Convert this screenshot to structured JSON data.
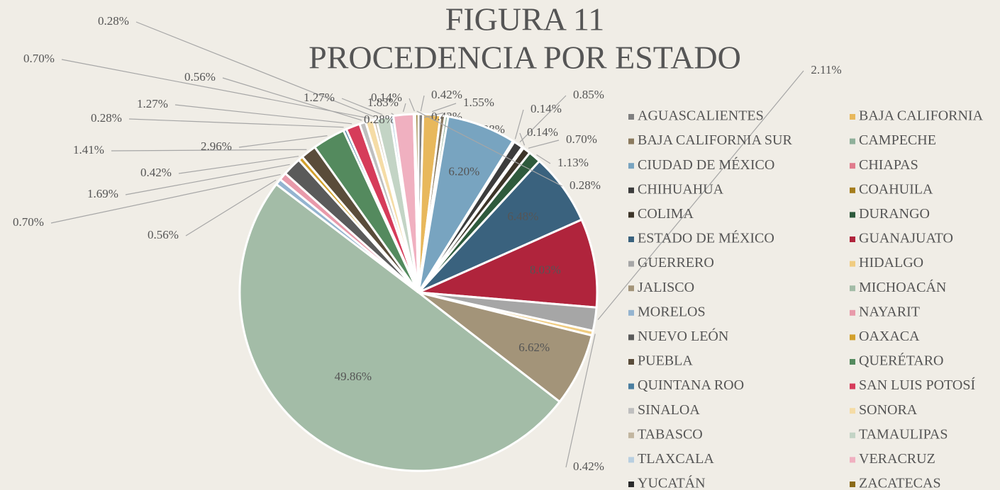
{
  "chart_data": {
    "type": "pie",
    "title": "FIGURA 11",
    "subtitle": "PROCEDENCIA POR ESTADO",
    "categories": [
      "AGUASCALIENTES",
      "BAJA CALIFORNIA",
      "BAJA CALIFORNIA SUR",
      "CAMPECHE",
      "CIUDAD DE MÉXICO",
      "CHIAPAS",
      "CHIHUAHUA",
      "COAHUILA",
      "COLIMA",
      "DURANGO",
      "ESTADO DE MÉXICO",
      "GUANAJUATO",
      "GUERRERO",
      "HIDALGO",
      "JALISCO",
      "MICHOACÁN",
      "MORELOS",
      "NAYARIT",
      "NUEVO LEÓN",
      "OAXACA",
      "PUEBLA",
      "QUERÉTARO",
      "QUINTANA ROO",
      "SAN LUIS POTOSÍ",
      "SINALOA",
      "SONORA",
      "TABASCO",
      "TAMAULIPAS",
      "TLAXCALA",
      "VERACRUZ",
      "YUCATÁN",
      "ZACATECAS"
    ],
    "values": [
      0.42,
      1.55,
      0.42,
      0.28,
      6.2,
      0.14,
      0.85,
      0.14,
      0.7,
      1.13,
      6.48,
      8.03,
      2.11,
      0.42,
      6.62,
      49.86,
      0.56,
      0.7,
      1.69,
      0.42,
      1.41,
      2.96,
      0.28,
      1.27,
      0.56,
      0.7,
      0.28,
      1.27,
      0.28,
      1.83,
      0.14,
      0.28
    ],
    "value_labels": [
      "0.42%",
      "1.55%",
      "0.42%",
      "0.28%",
      "6.20%",
      "0.14%",
      "0.85%",
      "0.14%",
      "0.70%",
      "1.13%",
      "6.48%",
      "8.03%",
      "2.11%",
      "0.42%",
      "6.62%",
      "49.86%",
      "0.56%",
      "0.70%",
      "1.69%",
      "0.42%",
      "1.41%",
      "2.96%",
      "0.28%",
      "1.27%",
      "0.56%",
      "0.70%",
      "0.28%",
      "1.27%",
      "0.28%",
      "1.83%",
      "0.14%",
      "0.28%"
    ],
    "colors": [
      "#7f7f7f",
      "#e8b85c",
      "#8b7a5e",
      "#8fb09a",
      "#78a4c0",
      "#e07b8c",
      "#3c3c3c",
      "#a57d1c",
      "#3d3529",
      "#2e5a3c",
      "#3a627e",
      "#b0243c",
      "#a6a6a6",
      "#f0cc80",
      "#a39479",
      "#a3bca7",
      "#94b4d0",
      "#e89aaa",
      "#5a5a5a",
      "#d2a02c",
      "#5a4c3a",
      "#548a5e",
      "#4a7ea0",
      "#d63c5a",
      "#bfbfbf",
      "#f5dca6",
      "#c2b6a0",
      "#c3d4c5",
      "#b8cfe0",
      "#f0b0c0",
      "#2a2a2a",
      "#8a6a18"
    ],
    "legend": "right"
  }
}
